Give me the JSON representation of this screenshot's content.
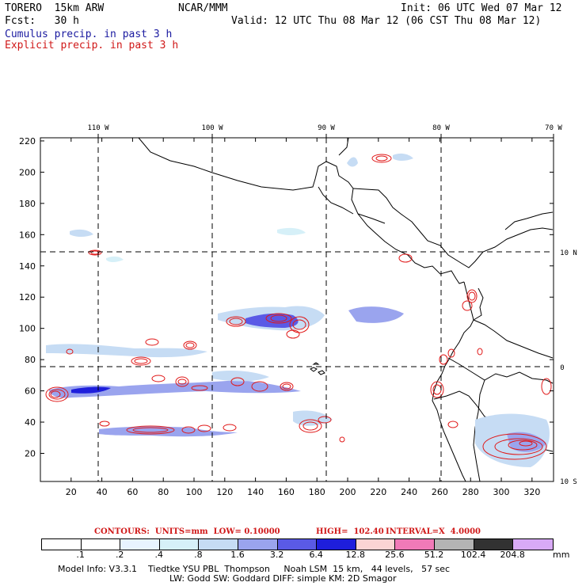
{
  "header": {
    "model": "TORERO  15km ARW",
    "center": "NCAR/MMM",
    "init": "Init: 06 UTC Wed 07 Mar 12",
    "fcst": "Fcst:   30 h",
    "valid": "Valid: 12 UTC Thu 08 Mar 12 (06 CST Thu 08 Mar 12)",
    "line_blue": "Cumulus precip. in past 3 h",
    "line_red": "Explicit precip. in past 3 h"
  },
  "map": {
    "lon_labels": [
      "110 W",
      "100 W",
      "90 W",
      "80 W",
      "70 W"
    ],
    "lat_labels": [
      "10 N",
      "0",
      "10 S"
    ],
    "x_ticks": [
      "20",
      "40",
      "60",
      "80",
      "100",
      "120",
      "140",
      "160",
      "180",
      "200",
      "220",
      "240",
      "260",
      "280",
      "300",
      "320"
    ],
    "y_ticks": [
      "20",
      "40",
      "60",
      "80",
      "100",
      "120",
      "140",
      "160",
      "180",
      "200",
      "220"
    ],
    "x_range": [
      0,
      334
    ],
    "y_range": [
      2,
      222
    ]
  },
  "contours_line": {
    "units": "CONTOURS:  UNITS=mm  LOW= 0.10000",
    "high": "HIGH=  102.40",
    "interval": "INTERVAL=X  4.0000"
  },
  "colorbar": {
    "labels": [
      ".1",
      ".2",
      ".4",
      ".8",
      "1.6",
      "3.2",
      "6.4",
      "12.8",
      "25.6",
      "51.2",
      "102.4",
      "204.8"
    ],
    "unit": "mm",
    "colors": [
      "#ffffff",
      "#ffffff",
      "#e8f4ff",
      "#d6f0f8",
      "#c6dcf4",
      "#9aa4ee",
      "#5a5ae6",
      "#1e1edc",
      "#fad4d4",
      "#f07ab8",
      "#b4b4b4",
      "#323232",
      "#d8aaf6"
    ]
  },
  "info": {
    "line1": "Model Info: V3.3.1    Tiedtke YSU PBL  Thompson     Noah LSM  15 km,   44 levels,   57 sec",
    "line2": "LW: Godd SW: Goddard DIFF: simple KM: 2D Smagor"
  }
}
